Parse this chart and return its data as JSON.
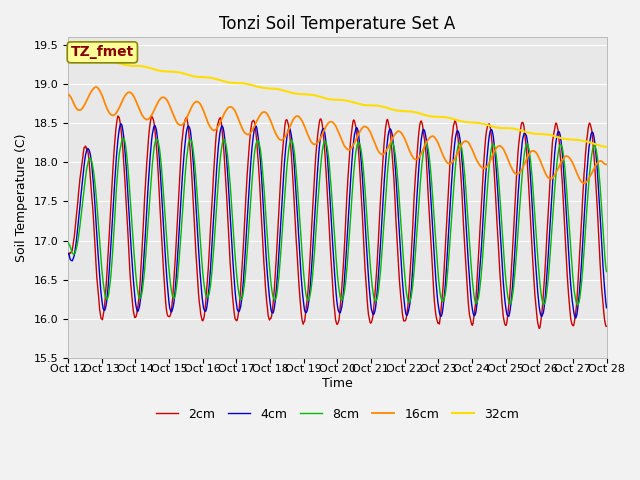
{
  "title": "Tonzi Soil Temperature Set A",
  "xlabel": "Time",
  "ylabel": "Soil Temperature (C)",
  "ylim": [
    15.5,
    19.6
  ],
  "series_colors": {
    "2cm": "#cc0000",
    "4cm": "#0000cc",
    "8cm": "#00bb00",
    "16cm": "#ff8800",
    "32cm": "#ffdd00"
  },
  "series_linewidths": {
    "2cm": 1.0,
    "4cm": 1.0,
    "8cm": 1.0,
    "16cm": 1.3,
    "32cm": 1.5
  },
  "legend_labels": [
    "2cm",
    "4cm",
    "8cm",
    "16cm",
    "32cm"
  ],
  "annotation_text": "TZ_fmet",
  "annotation_bg": "#ffff99",
  "annotation_border": "#888800",
  "annotation_text_color": "#880000",
  "plot_bg_color": "#e8e8e8",
  "fig_bg_color": "#f2f2f2",
  "grid_color": "#ffffff",
  "title_fontsize": 12,
  "axis_fontsize": 9,
  "tick_fontsize": 8,
  "legend_fontsize": 9
}
